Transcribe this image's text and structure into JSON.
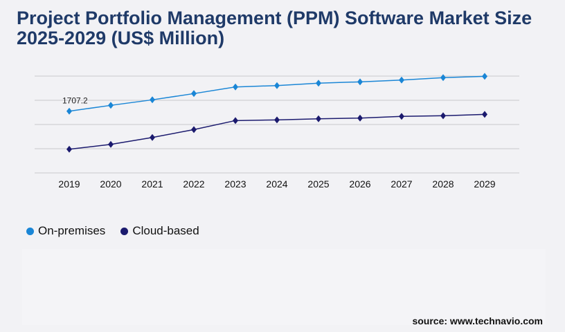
{
  "title": "Project Portfolio Management (PPM) Software Market Size 2025-2029 (US$ Million)",
  "source": "source: www.technavio.com",
  "chart_data": {
    "type": "line",
    "title": "Project Portfolio Management (PPM) Software Market Size 2025-2029 (US$ Million)",
    "x": [
      "2019",
      "2020",
      "2021",
      "2022",
      "2023",
      "2024",
      "2025",
      "2026",
      "2027",
      "2028",
      "2029"
    ],
    "series": [
      {
        "name": "On-premises",
        "color": "#1a86d6",
        "values": [
          1707.2,
          1868,
          2021,
          2193,
          2377,
          2415,
          2480,
          2518,
          2568,
          2633,
          2671
        ]
      },
      {
        "name": "Cloud-based",
        "color": "#1b1a6e",
        "values": [
          655,
          789,
          980,
          1198,
          1447,
          1466,
          1497,
          1516,
          1562,
          1581,
          1619
        ]
      }
    ],
    "data_labels": [
      {
        "series": "On-premises",
        "x": "2019",
        "text": "1707.2"
      }
    ],
    "ylim": [
      0,
      2677
    ],
    "grid": true,
    "legend": "bottom-left",
    "marker": "diamond"
  }
}
